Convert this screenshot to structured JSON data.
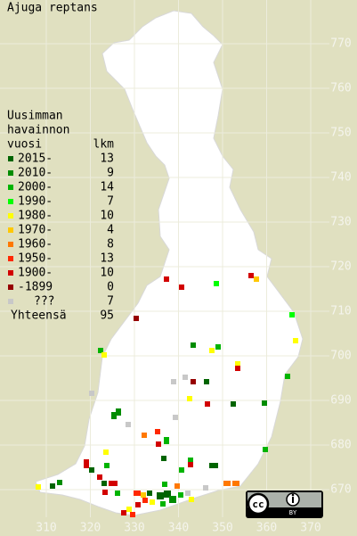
{
  "title": "Ajuga reptans",
  "legend": {
    "heading": [
      "Uusimman",
      "havainnon",
      "vuosi"
    ],
    "count_heading": "lkm",
    "entries": [
      {
        "label": "2015-",
        "count": 13,
        "color": "#006400"
      },
      {
        "label": "2010-",
        "count": 9,
        "color": "#008c00"
      },
      {
        "label": "2000-",
        "count": 14,
        "color": "#00b400"
      },
      {
        "label": "1990-",
        "count": 7,
        "color": "#00ff00"
      },
      {
        "label": "1980-",
        "count": 10,
        "color": "#ffff00"
      },
      {
        "label": "1970-",
        "count": 4,
        "color": "#ffc800"
      },
      {
        "label": "1960-",
        "count": 8,
        "color": "#ff7800"
      },
      {
        "label": "1950-",
        "count": 13,
        "color": "#ff2800"
      },
      {
        "label": "1900-",
        "count": 10,
        "color": "#d20000"
      },
      {
        "label": "-1899",
        "count": 0,
        "color": "#960000"
      },
      {
        "label": "???",
        "count": 7,
        "color": "#c8c8c8"
      }
    ],
    "total_label": "Yhteensä",
    "total": 95
  },
  "x_axis_labels": [
    310,
    320,
    330,
    340,
    350,
    360,
    370
  ],
  "y_axis_labels": [
    670,
    680,
    690,
    700,
    710,
    720,
    730,
    740,
    750,
    760,
    770
  ],
  "badge": {
    "cc": "cc",
    "by": "BY"
  }
}
